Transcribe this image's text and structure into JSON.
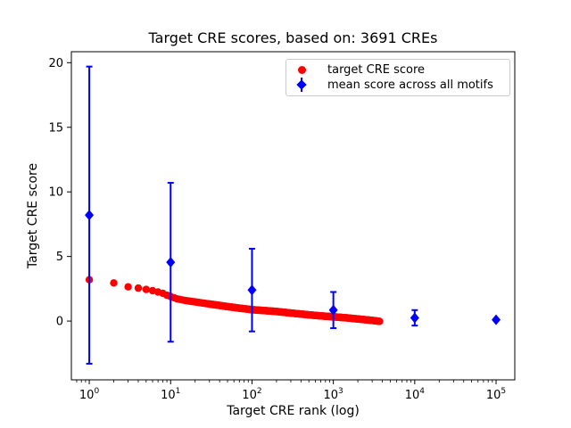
{
  "chart_data": {
    "type": "scatter",
    "title": "Target CRE scores, based on: 3691 CREs",
    "xlabel": "Target CRE rank (log)",
    "ylabel": "Target CRE score",
    "x_scale": "log",
    "xlim_log10": [
      -0.22,
      5.23
    ],
    "ylim": [
      -4.55,
      20.85
    ],
    "x_ticks": [
      1,
      10,
      100,
      1000,
      10000,
      100000
    ],
    "x_tick_exponents": [
      0,
      1,
      2,
      3,
      4,
      5
    ],
    "y_ticks": [
      0,
      5,
      10,
      15,
      20
    ],
    "grid": false,
    "legend_position": "upper right",
    "colors": {
      "target_series": "#ff0000",
      "mean_series": "#0000ff",
      "axis": "#000000",
      "legend_border": "#cccccc"
    },
    "series": [
      {
        "name": "target CRE score",
        "type": "scatter",
        "marker": "circle",
        "color": "#ff0000",
        "n_points": 3691,
        "points_sampled": [
          [
            1,
            3.2
          ],
          [
            2,
            2.95
          ],
          [
            3,
            2.65
          ],
          [
            4,
            2.55
          ],
          [
            5,
            2.45
          ],
          [
            6,
            2.35
          ],
          [
            7,
            2.25
          ],
          [
            8,
            2.15
          ],
          [
            9,
            2.0
          ],
          [
            10,
            1.9
          ],
          [
            12,
            1.72
          ],
          [
            15,
            1.6
          ],
          [
            20,
            1.48
          ],
          [
            30,
            1.32
          ],
          [
            50,
            1.12
          ],
          [
            70,
            1.0
          ],
          [
            100,
            0.88
          ],
          [
            150,
            0.8
          ],
          [
            200,
            0.74
          ],
          [
            300,
            0.62
          ],
          [
            500,
            0.48
          ],
          [
            700,
            0.4
          ],
          [
            1000,
            0.33
          ],
          [
            1500,
            0.24
          ],
          [
            2000,
            0.16
          ],
          [
            2500,
            0.1
          ],
          [
            3000,
            0.05
          ],
          [
            3691,
            -0.02
          ]
        ]
      },
      {
        "name": "mean score across all motifs",
        "type": "errorbar",
        "marker": "diamond",
        "color": "#0000ff",
        "x": [
          1,
          10,
          100,
          1000,
          10000,
          100000
        ],
        "y": [
          8.2,
          4.55,
          2.4,
          0.85,
          0.25,
          0.1
        ],
        "yerr": [
          11.5,
          6.15,
          3.2,
          1.4,
          0.6,
          0.08
        ]
      }
    ]
  }
}
